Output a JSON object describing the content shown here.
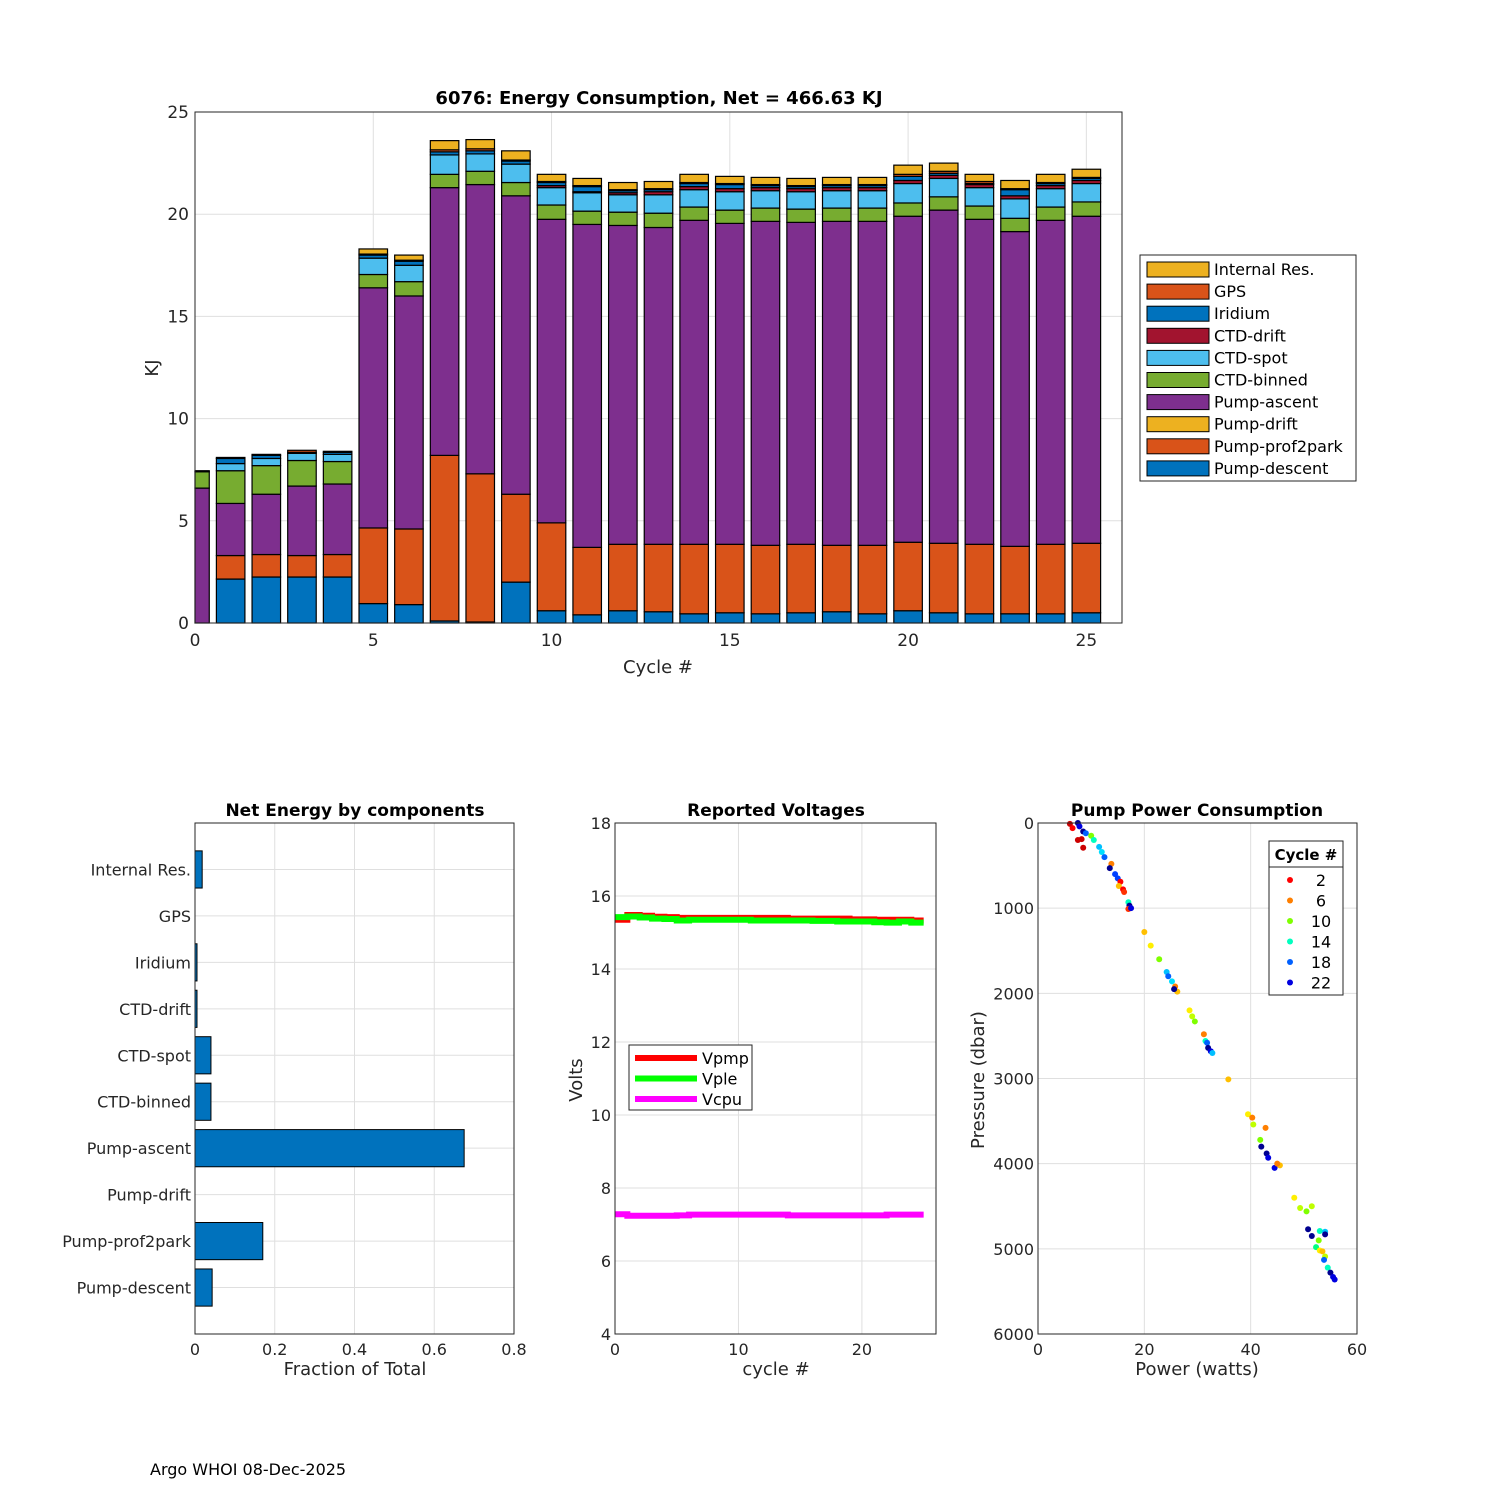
{
  "footer": "Argo WHOI 08-Dec-2025",
  "chart_data": [
    {
      "type": "bar",
      "stacked": true,
      "title": "6076: Energy Consumption,  Net = 466.63 KJ",
      "xlabel": "Cycle #",
      "ylabel": "KJ",
      "xlim": [
        0,
        26
      ],
      "ylim": [
        0,
        25
      ],
      "xticks": [
        0,
        5,
        10,
        15,
        20,
        25
      ],
      "yticks": [
        0,
        5,
        10,
        15,
        20,
        25
      ],
      "grid": true,
      "legend_position": "right",
      "categories": [
        0,
        1,
        2,
        3,
        4,
        5,
        6,
        7,
        8,
        9,
        10,
        11,
        12,
        13,
        14,
        15,
        16,
        17,
        18,
        19,
        20,
        21,
        22,
        23,
        24,
        25
      ],
      "series": [
        {
          "name": "Pump-descent",
          "color": "#0072BD",
          "values": [
            0.0,
            2.15,
            2.25,
            2.25,
            2.25,
            0.95,
            0.9,
            0.1,
            0.05,
            2.0,
            0.6,
            0.4,
            0.6,
            0.55,
            0.45,
            0.5,
            0.45,
            0.5,
            0.55,
            0.45,
            0.6,
            0.5,
            0.45,
            0.45,
            0.45,
            0.5
          ]
        },
        {
          "name": "Pump-prof2park",
          "color": "#D95319",
          "values": [
            0.0,
            1.15,
            1.1,
            1.05,
            1.1,
            3.7,
            3.7,
            8.1,
            7.25,
            4.3,
            4.3,
            3.3,
            3.25,
            3.3,
            3.4,
            3.35,
            3.35,
            3.35,
            3.25,
            3.35,
            3.35,
            3.4,
            3.4,
            3.3,
            3.4,
            3.4
          ]
        },
        {
          "name": "Pump-drift",
          "color": "#EDB120",
          "values": [
            0,
            0,
            0,
            0,
            0,
            0,
            0,
            0,
            0,
            0,
            0,
            0,
            0,
            0,
            0,
            0,
            0,
            0,
            0,
            0,
            0,
            0,
            0,
            0,
            0,
            0
          ]
        },
        {
          "name": "Pump-ascent",
          "color": "#7E2F8E",
          "values": [
            6.6,
            2.55,
            2.95,
            3.4,
            3.45,
            11.75,
            11.4,
            13.1,
            14.15,
            14.6,
            14.85,
            15.8,
            15.6,
            15.5,
            15.85,
            15.7,
            15.85,
            15.75,
            15.85,
            15.85,
            15.95,
            16.3,
            15.9,
            15.4,
            15.85,
            16.0
          ]
        },
        {
          "name": "CTD-binned",
          "color": "#77AC30",
          "values": [
            0.8,
            1.6,
            1.4,
            1.25,
            1.1,
            0.65,
            0.7,
            0.65,
            0.65,
            0.65,
            0.7,
            0.65,
            0.65,
            0.7,
            0.65,
            0.65,
            0.65,
            0.65,
            0.65,
            0.65,
            0.65,
            0.65,
            0.65,
            0.65,
            0.65,
            0.7
          ]
        },
        {
          "name": "CTD-spot",
          "color": "#4DBEEE",
          "values": [
            0.0,
            0.35,
            0.35,
            0.35,
            0.35,
            0.8,
            0.8,
            0.95,
            0.85,
            0.9,
            0.85,
            0.9,
            0.85,
            0.9,
            0.85,
            0.9,
            0.85,
            0.85,
            0.85,
            0.85,
            0.95,
            0.9,
            0.9,
            0.95,
            0.9,
            0.9
          ]
        },
        {
          "name": "CTD-drift",
          "color": "#A2142F",
          "values": [
            0,
            0,
            0,
            0,
            0,
            0,
            0,
            0,
            0,
            0,
            0.1,
            0.05,
            0.1,
            0.15,
            0.15,
            0.15,
            0.15,
            0.15,
            0.15,
            0.15,
            0.15,
            0.15,
            0.15,
            0.15,
            0.15,
            0.15
          ]
        },
        {
          "name": "Iridium",
          "color": "#0072BD",
          "values": [
            0.0,
            0.25,
            0.15,
            0.05,
            0.1,
            0.15,
            0.2,
            0.15,
            0.15,
            0.15,
            0.15,
            0.25,
            0.1,
            0.1,
            0.15,
            0.2,
            0.1,
            0.1,
            0.1,
            0.1,
            0.2,
            0.1,
            0.05,
            0.3,
            0.1,
            0.1
          ]
        },
        {
          "name": "GPS",
          "color": "#D95319",
          "values": [
            0.05,
            0.05,
            0.05,
            0.1,
            0.05,
            0.05,
            0.05,
            0.1,
            0.1,
            0.05,
            0.05,
            0.05,
            0.05,
            0.05,
            0.05,
            0.05,
            0.05,
            0.05,
            0.05,
            0.05,
            0.1,
            0.1,
            0.1,
            0.05,
            0.05,
            0.05
          ]
        },
        {
          "name": "Internal Res.",
          "color": "#EDB120",
          "values": [
            0.0,
            0.0,
            0.0,
            0.0,
            0.0,
            0.25,
            0.25,
            0.45,
            0.45,
            0.45,
            0.35,
            0.35,
            0.35,
            0.35,
            0.4,
            0.35,
            0.35,
            0.35,
            0.35,
            0.35,
            0.45,
            0.4,
            0.35,
            0.4,
            0.4,
            0.4
          ]
        }
      ],
      "legend": [
        "Internal Res.",
        "GPS",
        "Iridium",
        "CTD-drift",
        "CTD-spot",
        "CTD-binned",
        "Pump-ascent",
        "Pump-drift",
        "Pump-prof2park",
        "Pump-descent"
      ]
    },
    {
      "type": "bar",
      "orientation": "horizontal",
      "title": "Net Energy by components",
      "xlabel": "Fraction of Total",
      "ylabel": "",
      "xlim": [
        0,
        0.8
      ],
      "xticks": [
        0,
        0.2,
        0.4,
        0.6,
        0.8
      ],
      "xtick_labels": [
        "0",
        "0.2",
        "0.4",
        "0.6",
        "0.8"
      ],
      "grid": true,
      "color": "#0072BD",
      "categories": [
        "Internal Res.",
        "GPS",
        "Iridium",
        "CTD-drift",
        "CTD-spot",
        "CTD-binned",
        "Pump-ascent",
        "Pump-drift",
        "Pump-prof2park",
        "Pump-descent"
      ],
      "values": [
        0.018,
        0.0,
        0.005,
        0.005,
        0.04,
        0.04,
        0.675,
        0.0,
        0.17,
        0.043
      ]
    },
    {
      "type": "line",
      "title": "Reported Voltages",
      "xlabel": "cycle #",
      "ylabel": "Volts",
      "xlim": [
        0,
        26
      ],
      "ylim": [
        4,
        18
      ],
      "xticks": [
        0,
        10,
        20
      ],
      "yticks": [
        4,
        6,
        8,
        10,
        12,
        14,
        16,
        18
      ],
      "grid": true,
      "legend_position": "lower-left",
      "x": [
        0,
        1,
        2,
        3,
        4,
        5,
        6,
        7,
        8,
        9,
        10,
        11,
        12,
        13,
        14,
        15,
        16,
        17,
        18,
        19,
        20,
        21,
        22,
        23,
        24,
        25
      ],
      "series": [
        {
          "name": "Vpmp",
          "color": "#FF0000",
          "values": [
            15.35,
            15.48,
            15.46,
            15.43,
            15.42,
            15.4,
            15.4,
            15.4,
            15.4,
            15.4,
            15.4,
            15.4,
            15.4,
            15.4,
            15.38,
            15.38,
            15.38,
            15.38,
            15.38,
            15.36,
            15.36,
            15.35,
            15.35,
            15.35,
            15.33,
            15.33
          ]
        },
        {
          "name": "Vple",
          "color": "#00FF00",
          "values": [
            15.42,
            15.44,
            15.41,
            15.38,
            15.37,
            15.33,
            15.35,
            15.35,
            15.35,
            15.35,
            15.35,
            15.33,
            15.33,
            15.33,
            15.33,
            15.33,
            15.32,
            15.32,
            15.3,
            15.3,
            15.3,
            15.28,
            15.27,
            15.3,
            15.27,
            15.27
          ]
        },
        {
          "name": "Vcpu",
          "color": "#FF00FF",
          "values": [
            7.28,
            7.24,
            7.24,
            7.24,
            7.24,
            7.25,
            7.27,
            7.27,
            7.27,
            7.27,
            7.27,
            7.27,
            7.27,
            7.27,
            7.25,
            7.25,
            7.25,
            7.25,
            7.25,
            7.25,
            7.25,
            7.25,
            7.27,
            7.27,
            7.27,
            7.27
          ]
        }
      ]
    },
    {
      "type": "scatter",
      "title": "Pump Power Consumption",
      "xlabel": "Power (watts)",
      "ylabel": "Pressure (dbar)",
      "xlim": [
        0,
        60
      ],
      "ylim": [
        0,
        6000
      ],
      "y_reversed": true,
      "xticks": [
        0,
        20,
        40,
        60
      ],
      "yticks": [
        0,
        1000,
        2000,
        3000,
        4000,
        5000,
        6000
      ],
      "grid": true,
      "legend_title": "Cycle #",
      "legend_position": "top-right",
      "legend": [
        {
          "label": "2",
          "color": "#FF0000"
        },
        {
          "label": "6",
          "color": "#FF7F00"
        },
        {
          "label": "10",
          "color": "#7FFF00"
        },
        {
          "label": "14",
          "color": "#00FFBF"
        },
        {
          "label": "18",
          "color": "#0060FF"
        },
        {
          "label": "22",
          "color": "#0000E0"
        }
      ],
      "points": [
        {
          "x": 6.0,
          "y": 10,
          "c": "#CC0000"
        },
        {
          "x": 6.5,
          "y": 60,
          "c": "#FF0000"
        },
        {
          "x": 7.5,
          "y": 0,
          "c": "#000090"
        },
        {
          "x": 7.8,
          "y": 40,
          "c": "#0000E0"
        },
        {
          "x": 8.5,
          "y": 100,
          "c": "#000090"
        },
        {
          "x": 9.0,
          "y": 120,
          "c": "#0060FF"
        },
        {
          "x": 7.5,
          "y": 200,
          "c": "#CC0000"
        },
        {
          "x": 8.2,
          "y": 190,
          "c": "#CC0000"
        },
        {
          "x": 8.5,
          "y": 290,
          "c": "#CC0000"
        },
        {
          "x": 10.0,
          "y": 150,
          "c": "#7FFF00"
        },
        {
          "x": 10.5,
          "y": 200,
          "c": "#00FFBF"
        },
        {
          "x": 11.5,
          "y": 280,
          "c": "#00BFFF"
        },
        {
          "x": 12.0,
          "y": 340,
          "c": "#00DFFF"
        },
        {
          "x": 12.5,
          "y": 400,
          "c": "#0060FF"
        },
        {
          "x": 13.8,
          "y": 480,
          "c": "#FF7F00"
        },
        {
          "x": 13.5,
          "y": 530,
          "c": "#000090"
        },
        {
          "x": 14.5,
          "y": 600,
          "c": "#0040FF"
        },
        {
          "x": 15.0,
          "y": 650,
          "c": "#0040FF"
        },
        {
          "x": 15.5,
          "y": 690,
          "c": "#FF0000"
        },
        {
          "x": 15.2,
          "y": 740,
          "c": "#FFBF00"
        },
        {
          "x": 16.0,
          "y": 780,
          "c": "#FF0000"
        },
        {
          "x": 16.2,
          "y": 810,
          "c": "#FF3000"
        },
        {
          "x": 17.0,
          "y": 930,
          "c": "#00FFBF"
        },
        {
          "x": 17.2,
          "y": 970,
          "c": "#000090"
        },
        {
          "x": 17.0,
          "y": 1010,
          "c": "#FF3000"
        },
        {
          "x": 17.5,
          "y": 1000,
          "c": "#0000E0"
        },
        {
          "x": 20.0,
          "y": 1280,
          "c": "#FFBF00"
        },
        {
          "x": 21.2,
          "y": 1440,
          "c": "#FFEF00"
        },
        {
          "x": 22.8,
          "y": 1600,
          "c": "#7FFF00"
        },
        {
          "x": 24.2,
          "y": 1750,
          "c": "#00BFFF"
        },
        {
          "x": 24.5,
          "y": 1800,
          "c": "#0060FF"
        },
        {
          "x": 25.2,
          "y": 1860,
          "c": "#00DFFF"
        },
        {
          "x": 25.8,
          "y": 1920,
          "c": "#FF7F00"
        },
        {
          "x": 26.2,
          "y": 1980,
          "c": "#FFBF00"
        },
        {
          "x": 25.6,
          "y": 1950,
          "c": "#000090"
        },
        {
          "x": 28.5,
          "y": 2200,
          "c": "#FFEF00"
        },
        {
          "x": 29.0,
          "y": 2270,
          "c": "#BFFF00"
        },
        {
          "x": 29.5,
          "y": 2330,
          "c": "#7FFF00"
        },
        {
          "x": 31.2,
          "y": 2480,
          "c": "#FF7F00"
        },
        {
          "x": 31.5,
          "y": 2560,
          "c": "#00FFBF"
        },
        {
          "x": 31.8,
          "y": 2580,
          "c": "#0060FF"
        },
        {
          "x": 32.0,
          "y": 2640,
          "c": "#000090"
        },
        {
          "x": 32.5,
          "y": 2680,
          "c": "#0000E0"
        },
        {
          "x": 32.8,
          "y": 2700,
          "c": "#00BFFF"
        },
        {
          "x": 35.8,
          "y": 3010,
          "c": "#FFBF00"
        },
        {
          "x": 39.5,
          "y": 3420,
          "c": "#FFEF00"
        },
        {
          "x": 40.3,
          "y": 3460,
          "c": "#FF7F00"
        },
        {
          "x": 40.5,
          "y": 3540,
          "c": "#BFFF00"
        },
        {
          "x": 42.8,
          "y": 3580,
          "c": "#FF7F00"
        },
        {
          "x": 41.8,
          "y": 3720,
          "c": "#7FFF00"
        },
        {
          "x": 42.0,
          "y": 3800,
          "c": "#000090"
        },
        {
          "x": 43.0,
          "y": 3880,
          "c": "#000090"
        },
        {
          "x": 43.3,
          "y": 3930,
          "c": "#0000E0"
        },
        {
          "x": 44.5,
          "y": 4050,
          "c": "#0000E0"
        },
        {
          "x": 45.5,
          "y": 4020,
          "c": "#FFBF00"
        },
        {
          "x": 45.0,
          "y": 4000,
          "c": "#FF7F00"
        },
        {
          "x": 48.2,
          "y": 4400,
          "c": "#FFEF00"
        },
        {
          "x": 49.3,
          "y": 4520,
          "c": "#BFFF00"
        },
        {
          "x": 50.5,
          "y": 4560,
          "c": "#7FFF00"
        },
        {
          "x": 51.5,
          "y": 4500,
          "c": "#BFFF00"
        },
        {
          "x": 50.8,
          "y": 4770,
          "c": "#000090"
        },
        {
          "x": 51.5,
          "y": 4850,
          "c": "#000090"
        },
        {
          "x": 53.0,
          "y": 4790,
          "c": "#00FFBF"
        },
        {
          "x": 54.0,
          "y": 4800,
          "c": "#00BFFF"
        },
        {
          "x": 54.0,
          "y": 4830,
          "c": "#000090"
        },
        {
          "x": 52.8,
          "y": 4900,
          "c": "#7FFF00"
        },
        {
          "x": 52.3,
          "y": 4980,
          "c": "#00FF7F"
        },
        {
          "x": 53.0,
          "y": 5020,
          "c": "#FFEF00"
        },
        {
          "x": 53.5,
          "y": 5030,
          "c": "#FFBF00"
        },
        {
          "x": 54.0,
          "y": 5090,
          "c": "#BFFF00"
        },
        {
          "x": 53.8,
          "y": 5130,
          "c": "#0060FF"
        },
        {
          "x": 54.5,
          "y": 5220,
          "c": "#00FFBF"
        },
        {
          "x": 55.0,
          "y": 5280,
          "c": "#000090"
        },
        {
          "x": 55.5,
          "y": 5330,
          "c": "#0000E0"
        },
        {
          "x": 55.8,
          "y": 5360,
          "c": "#0000E0"
        }
      ]
    }
  ]
}
